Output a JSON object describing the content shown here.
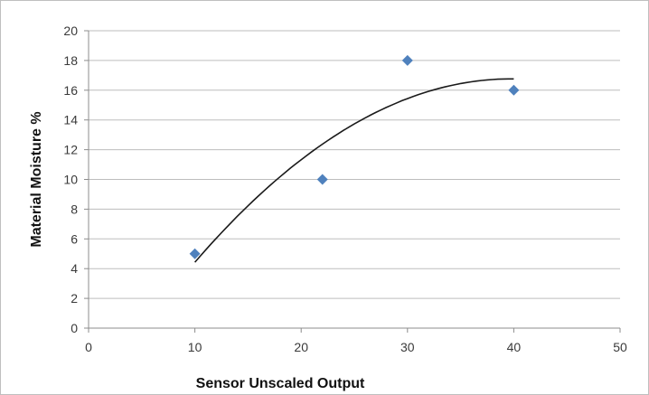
{
  "chart_data": {
    "type": "scatter",
    "title": "",
    "xlabel": "Sensor Unscaled Output",
    "ylabel": "Material Moisture %",
    "xlim": [
      0,
      50
    ],
    "ylim": [
      0,
      20
    ],
    "x_ticks": [
      0,
      10,
      20,
      30,
      40,
      50
    ],
    "y_ticks": [
      0,
      2,
      4,
      6,
      8,
      10,
      12,
      14,
      16,
      18,
      20
    ],
    "grid": true,
    "legend": "none",
    "series": [
      {
        "points": [
          {
            "x": 10,
            "y": 5
          },
          {
            "x": 22,
            "y": 10
          },
          {
            "x": 30,
            "y": 18
          },
          {
            "x": 40,
            "y": 16
          }
        ],
        "color": "#4f81bd"
      }
    ],
    "trendline": {
      "type": "polynomial",
      "from_x": 10,
      "to_x": 40,
      "color": "#1a1a1a"
    }
  }
}
